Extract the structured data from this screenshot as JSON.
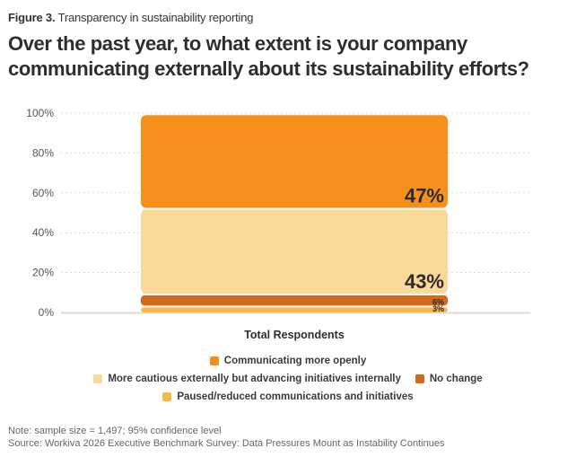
{
  "figure": {
    "label_prefix": "Figure 3.",
    "label_text": " Transparency in sustainability reporting",
    "title": "Over the past year, to what extent is your company communicating externally about its sustainability efforts?"
  },
  "chart_data": {
    "type": "bar",
    "stacked": true,
    "title": "Over the past year, to what extent is your company communicating externally about its sustainability efforts?",
    "xlabel": "",
    "ylabel": "",
    "categories": [
      "Total Respondents"
    ],
    "ylim": [
      0,
      100
    ],
    "yticks": [
      "0%",
      "20%",
      "40%",
      "60%",
      "80%",
      "100%"
    ],
    "ytick_values": [
      0,
      20,
      40,
      60,
      80,
      100
    ],
    "grid": true,
    "legend_position": "bottom",
    "series": [
      {
        "name": "Paused/reduced communications and initiatives",
        "values": [
          3
        ],
        "label": "3%",
        "color": "#f7b84b"
      },
      {
        "name": "No change",
        "values": [
          6
        ],
        "label": "6%",
        "color": "#d4691e"
      },
      {
        "name": "More cautious externally but advancing initiatives internally",
        "values": [
          43
        ],
        "label": "43%",
        "color": "#fad898"
      },
      {
        "name": "Communicating more openly",
        "values": [
          47
        ],
        "label": "47%",
        "color": "#f68f1b"
      }
    ]
  },
  "legend": {
    "rows": [
      [
        {
          "name": "Communicating more openly",
          "color": "#f68f1b"
        }
      ],
      [
        {
          "name": "More cautious externally but advancing initiatives internally",
          "color": "#fad898"
        },
        {
          "name": "No change",
          "color": "#d4691e"
        }
      ],
      [
        {
          "name": "Paused/reduced communications and initiatives",
          "color": "#f7b84b"
        }
      ]
    ]
  },
  "notes": {
    "note": "Note: sample size = 1,497; 95% confidence level",
    "source": "Source: Workiva 2026 Executive Benchmark Survey: Data Pressures Mount as Instability Continues"
  }
}
